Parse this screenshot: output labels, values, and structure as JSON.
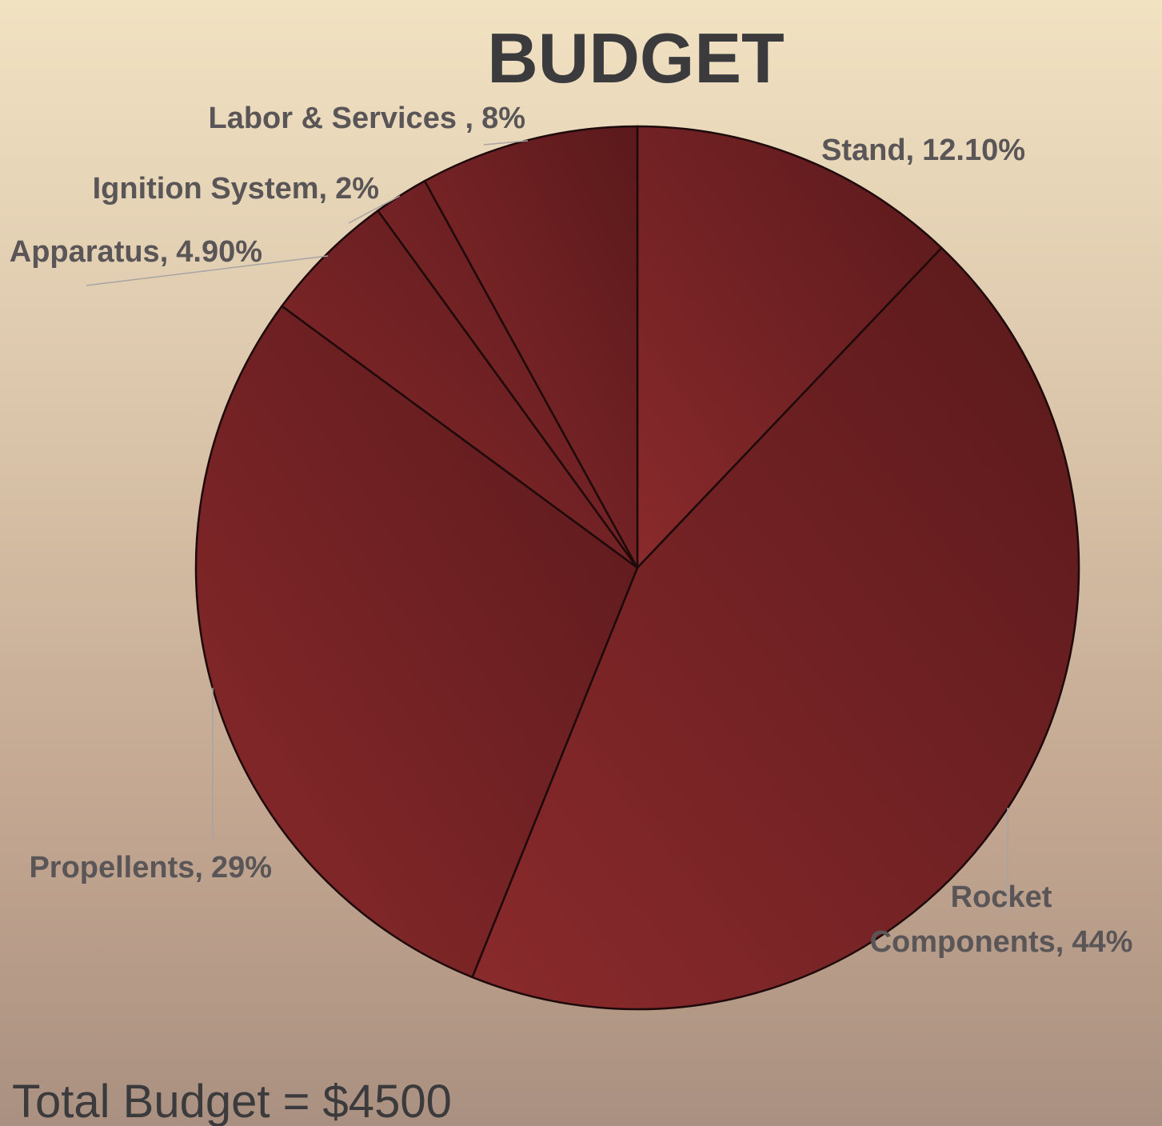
{
  "chart_data": {
    "type": "pie",
    "title": "BUDGET",
    "categories": [
      "Stand,",
      "Rocket Components,",
      "Propellents,",
      "Apparatus,",
      "Ignition System,",
      "Labor & Services ,"
    ],
    "values": [
      12.1,
      44,
      29,
      4.9,
      2,
      8
    ],
    "value_labels": [
      "12.10%",
      "44%",
      "29%",
      "4.90%",
      "2%",
      "8%"
    ],
    "color": "#7a2428",
    "footnote": "Total Budget = $4500"
  }
}
